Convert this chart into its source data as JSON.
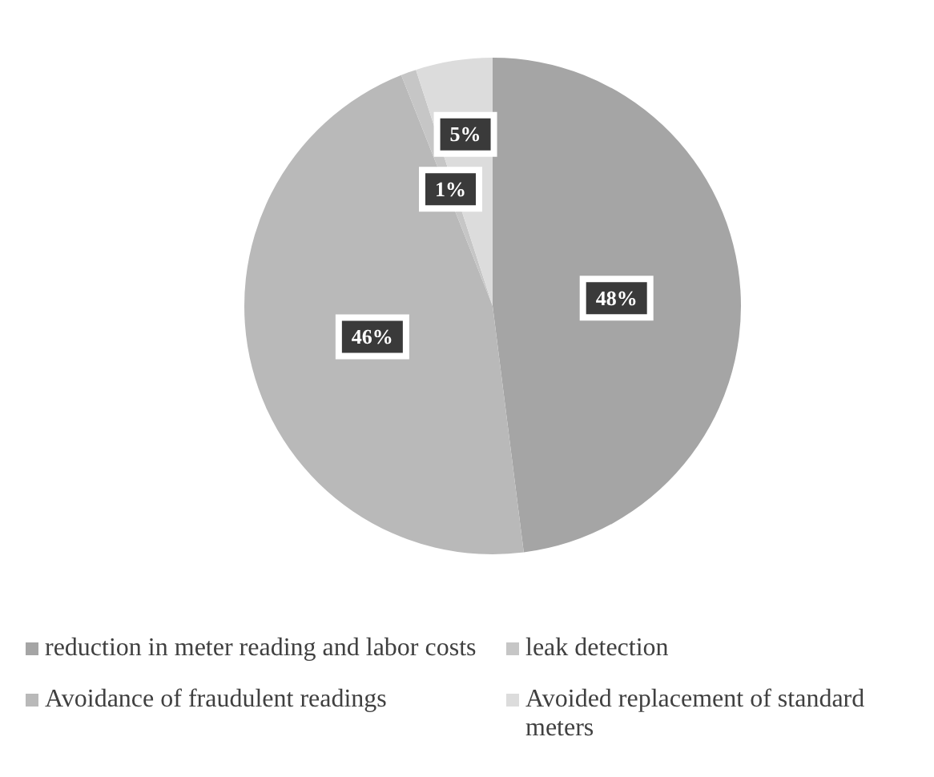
{
  "chart_data": {
    "type": "pie",
    "categories": [
      "reduction in meter reading and labor costs",
      "Avoidance of fraudulent readings",
      "leak detection",
      "Avoided replacement of standard meters"
    ],
    "values": [
      48,
      46,
      1,
      5
    ],
    "value_labels": [
      "48%",
      "46%",
      "1%",
      "5%"
    ],
    "colors": [
      "#a5a5a5",
      "#b9b9b9",
      "#c6c6c6",
      "#dcdcdc"
    ],
    "legend": "bottom"
  }
}
